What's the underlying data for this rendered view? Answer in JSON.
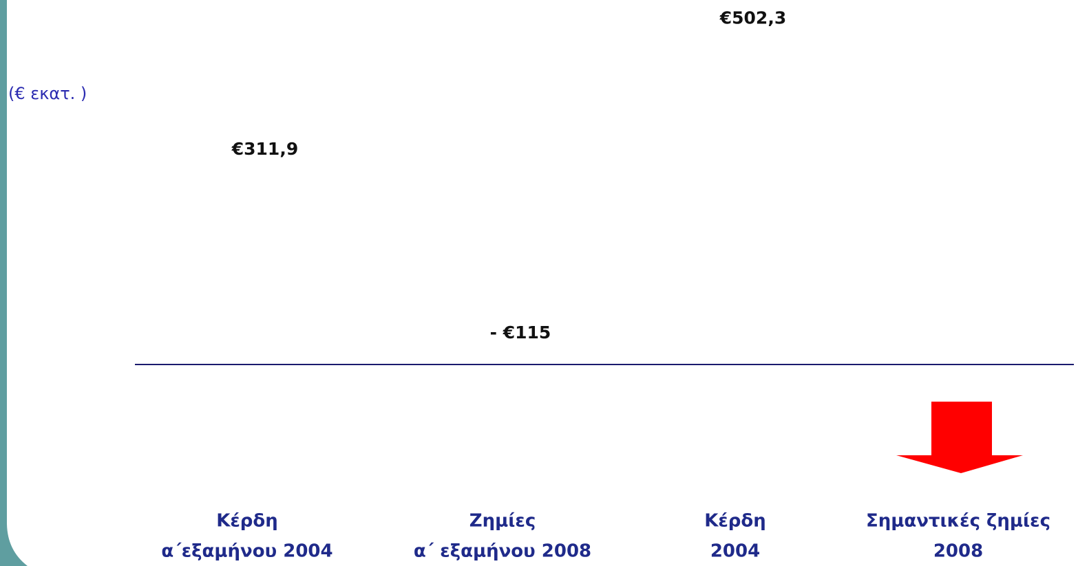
{
  "chart_data": {
    "type": "bar",
    "y_label": "(€ εκατ. )",
    "categories": [
      [
        "Κέρδη",
        "α΄εξαμήνου 2004"
      ],
      [
        "Ζημίες",
        "α΄ εξαμήνου 2008"
      ],
      [
        "Κέρδη",
        "2004"
      ],
      [
        "Σημαντικές ζημίες",
        "2008"
      ]
    ],
    "values": [
      311.9,
      -115,
      502.3,
      null
    ],
    "value_labels": [
      "€311,9",
      "- €115",
      "€502,3",
      null
    ],
    "ylim": [
      -150,
      530
    ],
    "axis_color": "#1a1a6e",
    "category_color": "#1f2a8a",
    "arrow_color": "#ff0000"
  }
}
